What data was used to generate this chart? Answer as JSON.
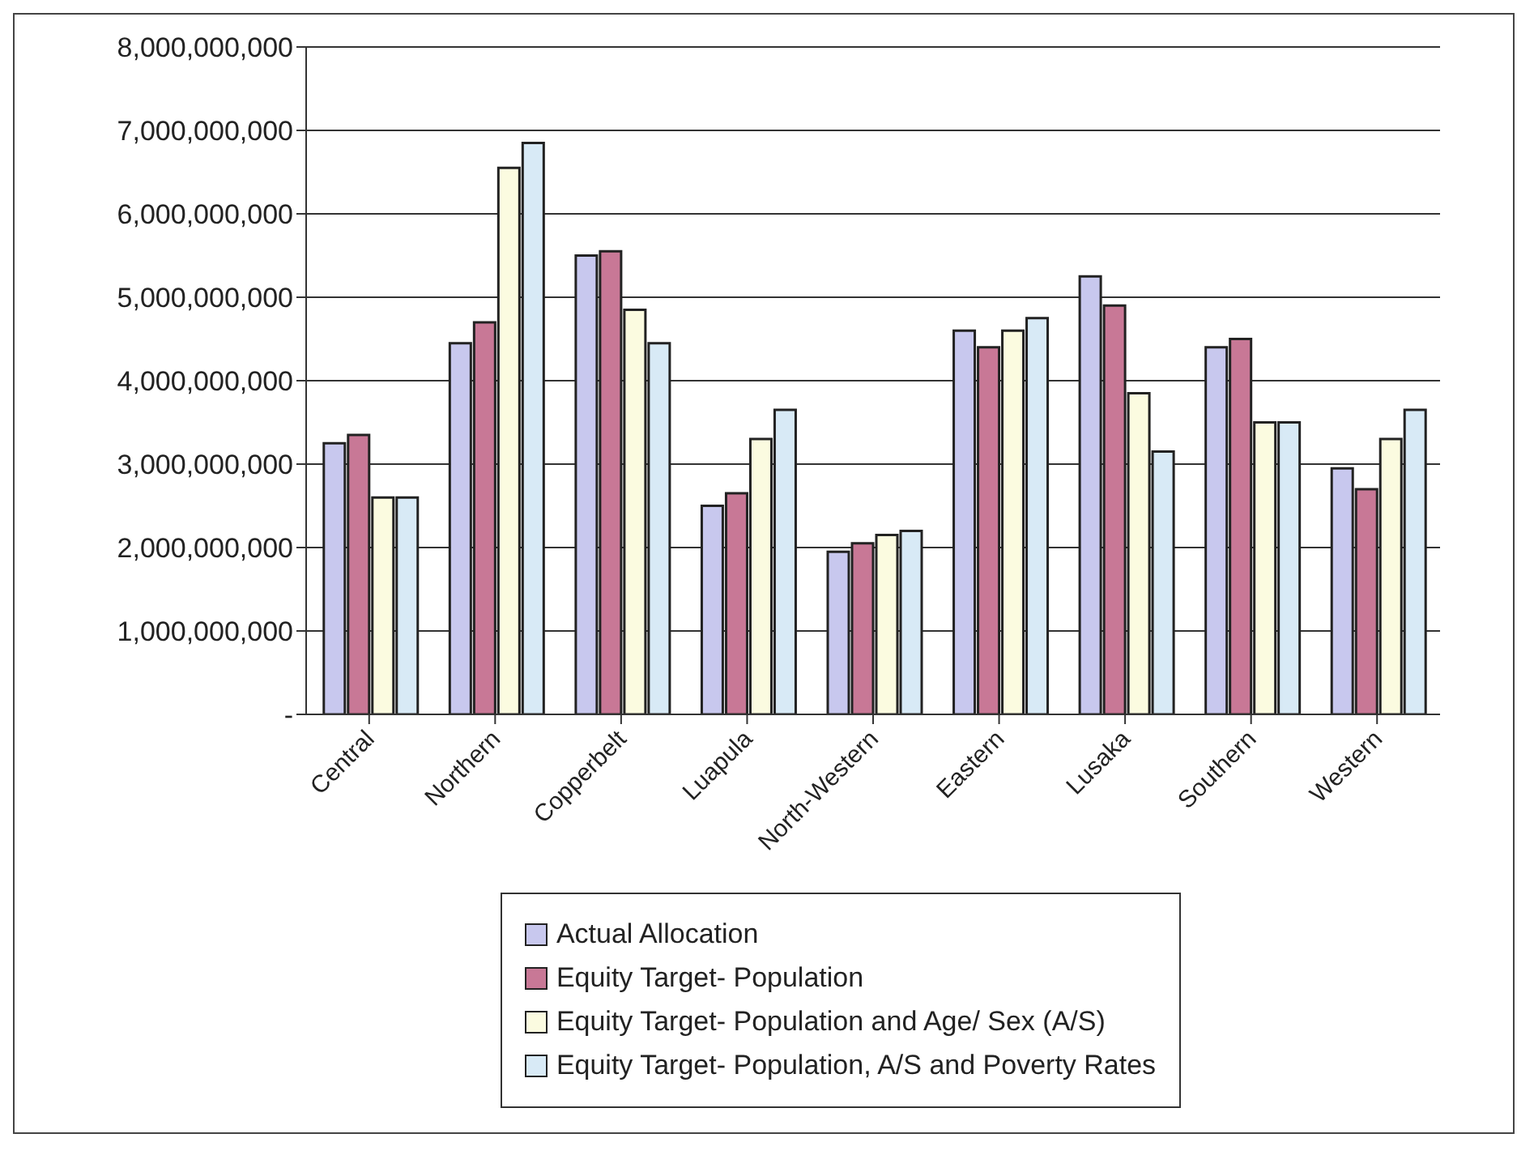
{
  "chart_data": {
    "type": "bar",
    "categories": [
      "Central",
      "Northern",
      "Copperbelt",
      "Luapula",
      "North-Western",
      "Eastern",
      "Lusaka",
      "Southern",
      "Western"
    ],
    "series": [
      {
        "name": "Actual Allocation",
        "color": "#c8c8ee",
        "values": [
          3250000000,
          4450000000,
          5500000000,
          2500000000,
          1950000000,
          4600000000,
          5250000000,
          4400000000,
          2950000000
        ]
      },
      {
        "name": "Equity Target- Population",
        "color": "#c87896",
        "values": [
          3350000000,
          4700000000,
          5550000000,
          2650000000,
          2050000000,
          4400000000,
          4900000000,
          4500000000,
          2700000000
        ]
      },
      {
        "name": "Equity Target- Population and Age/ Sex (A/S)",
        "color": "#fbfbe0",
        "values": [
          2600000000,
          6550000000,
          4850000000,
          3300000000,
          2150000000,
          4600000000,
          3850000000,
          3500000000,
          3300000000
        ]
      },
      {
        "name": "Equity Target- Population, A/S and Poverty Rates",
        "color": "#d8eaf6",
        "values": [
          2600000000,
          6850000000,
          4450000000,
          3650000000,
          2200000000,
          4750000000,
          3150000000,
          3500000000,
          3650000000
        ]
      }
    ],
    "ylim": [
      0,
      8000000000
    ],
    "yticks": [
      {
        "value": 0,
        "label": "-"
      },
      {
        "value": 1000000000,
        "label": "1,000,000,000"
      },
      {
        "value": 2000000000,
        "label": "2,000,000,000"
      },
      {
        "value": 3000000000,
        "label": "3,000,000,000"
      },
      {
        "value": 4000000000,
        "label": "4,000,000,000"
      },
      {
        "value": 5000000000,
        "label": "5,000,000,000"
      },
      {
        "value": 6000000000,
        "label": "6,000,000,000"
      },
      {
        "value": 7000000000,
        "label": "7,000,000,000"
      },
      {
        "value": 8000000000,
        "label": "8,000,000,000"
      }
    ],
    "grid": "y",
    "legend": "bottom"
  }
}
